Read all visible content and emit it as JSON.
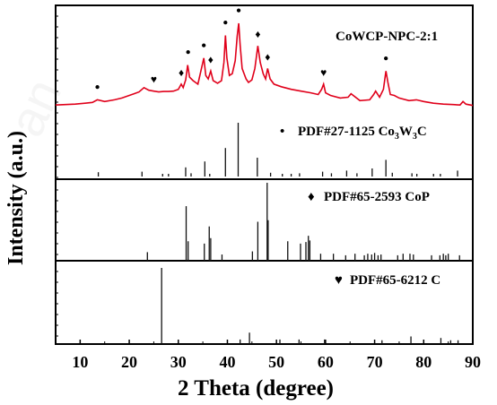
{
  "chart_data": {
    "type": "line",
    "xlabel": "2 Theta (degree)",
    "ylabel": "Intensity (a.u.)",
    "xlim": [
      5,
      90
    ],
    "xticks": [
      10,
      20,
      30,
      40,
      50,
      60,
      70,
      80,
      90
    ],
    "line_color": "#e0001a",
    "stick_color": "#111111",
    "panels": [
      {
        "id": "sample",
        "label": "CoWCP-NPC-2:1",
        "type": "line",
        "series": [
          {
            "x": [
              5,
              7,
              9,
              11,
              12.5,
              13.5,
              15,
              17,
              18.5,
              20,
              21,
              22,
              23,
              24,
              25,
              26,
              27,
              28,
              29,
              30,
              30.6,
              31,
              31.5,
              31.9,
              32.3,
              33,
              34,
              34.6,
              35.2,
              35.6,
              36.1,
              36.6,
              37.1,
              38,
              38.8,
              39.3,
              39.6,
              39.9,
              40.4,
              41,
              41.6,
              42,
              42.3,
              42.6,
              43,
              43.8,
              44.3,
              45,
              45.6,
              46.2,
              46.7,
              47.3,
              47.8,
              48.2,
              48.7,
              49.5,
              51,
              53,
              55,
              57,
              58.5,
              59.2,
              59.6,
              60,
              61,
              63,
              64.6,
              65.2,
              67,
              69,
              69.8,
              70.2,
              71,
              71.8,
              72.3,
              72.7,
              73.2,
              74,
              75,
              77,
              78.5,
              80,
              82,
              84,
              86,
              87.4,
              88,
              88.6,
              90
            ],
            "y": [
              6,
              6.5,
              7,
              8,
              9,
              12,
              10,
              12,
              14,
              17,
              19,
              21,
              26,
              23,
              22,
              21,
              21.5,
              21.5,
              22,
              24,
              30,
              26,
              35,
              52,
              38,
              34,
              30,
              45,
              60,
              40,
              36,
              45,
              34,
              31,
              34,
              55,
              86,
              60,
              40,
              42,
              57,
              85,
              100,
              75,
              48,
              36,
              32,
              35,
              48,
              74,
              55,
              42,
              36,
              48,
              36,
              30,
              27,
              24,
              22,
              20,
              18,
              24,
              30,
              20,
              17,
              14,
              15,
              19,
              11,
              12,
              18,
              22,
              15,
              24,
              45,
              32,
              18,
              17,
              14,
              11,
              12,
              10,
              8,
              7,
              6.5,
              6,
              10,
              7,
              5.5
            ]
          }
        ],
        "markers": [
          {
            "symbol": "•",
            "x": 13.5
          },
          {
            "symbol": "♥",
            "x": 25
          },
          {
            "symbol": "♦",
            "x": 30.6
          },
          {
            "symbol": "•",
            "x": 32
          },
          {
            "symbol": "•",
            "x": 35.2
          },
          {
            "symbol": "♦",
            "x": 36.6
          },
          {
            "symbol": "•",
            "x": 39.6
          },
          {
            "symbol": "•",
            "x": 42.3
          },
          {
            "symbol": "♦",
            "x": 46.2
          },
          {
            "symbol": "♦",
            "x": 48.2
          },
          {
            "symbol": "♥",
            "x": 59.6
          },
          {
            "symbol": "•",
            "x": 72.3
          }
        ]
      },
      {
        "id": "pdf-27-1125",
        "label_prefix": "•",
        "label_main": "PDF#27-1125  Co",
        "label_sub1": "3",
        "label_mid": "W",
        "label_sub2": "3",
        "label_end": "C",
        "type": "stick",
        "sticks": [
          {
            "x": 13.7,
            "y": 8
          },
          {
            "x": 22.6,
            "y": 9
          },
          {
            "x": 26.8,
            "y": 5
          },
          {
            "x": 28.0,
            "y": 5
          },
          {
            "x": 31.5,
            "y": 17
          },
          {
            "x": 32.6,
            "y": 6
          },
          {
            "x": 35.4,
            "y": 28
          },
          {
            "x": 36.4,
            "y": 5
          },
          {
            "x": 39.6,
            "y": 53
          },
          {
            "x": 42.2,
            "y": 100
          },
          {
            "x": 46.1,
            "y": 35
          },
          {
            "x": 48.8,
            "y": 7
          },
          {
            "x": 51.2,
            "y": 5
          },
          {
            "x": 53.0,
            "y": 5
          },
          {
            "x": 54.7,
            "y": 6
          },
          {
            "x": 59.4,
            "y": 9
          },
          {
            "x": 61.2,
            "y": 6
          },
          {
            "x": 64.3,
            "y": 11
          },
          {
            "x": 66.4,
            "y": 6
          },
          {
            "x": 69.5,
            "y": 15
          },
          {
            "x": 72.3,
            "y": 31
          },
          {
            "x": 73.6,
            "y": 7
          },
          {
            "x": 77.6,
            "y": 6
          },
          {
            "x": 78.6,
            "y": 5
          },
          {
            "x": 82.0,
            "y": 5
          },
          {
            "x": 83.4,
            "y": 5
          },
          {
            "x": 86.9,
            "y": 11
          }
        ]
      },
      {
        "id": "pdf-65-2593",
        "label_prefix": "♦",
        "label_main": "PDF#65-2593  CoP",
        "type": "stick",
        "sticks": [
          {
            "x": 23.7,
            "y": 11
          },
          {
            "x": 31.6,
            "y": 70
          },
          {
            "x": 32.0,
            "y": 25
          },
          {
            "x": 35.3,
            "y": 22
          },
          {
            "x": 36.3,
            "y": 44
          },
          {
            "x": 36.6,
            "y": 29
          },
          {
            "x": 38.9,
            "y": 8
          },
          {
            "x": 45.1,
            "y": 12
          },
          {
            "x": 46.2,
            "y": 50
          },
          {
            "x": 48.1,
            "y": 100
          },
          {
            "x": 48.3,
            "y": 52
          },
          {
            "x": 52.3,
            "y": 25
          },
          {
            "x": 54.9,
            "y": 22
          },
          {
            "x": 56.0,
            "y": 24
          },
          {
            "x": 56.5,
            "y": 32
          },
          {
            "x": 56.8,
            "y": 26
          },
          {
            "x": 59.0,
            "y": 9
          },
          {
            "x": 61.6,
            "y": 9
          },
          {
            "x": 64.1,
            "y": 7
          },
          {
            "x": 66.0,
            "y": 9
          },
          {
            "x": 67.9,
            "y": 7
          },
          {
            "x": 68.6,
            "y": 9
          },
          {
            "x": 69.4,
            "y": 8
          },
          {
            "x": 70.0,
            "y": 10
          },
          {
            "x": 70.7,
            "y": 7
          },
          {
            "x": 71.3,
            "y": 8
          },
          {
            "x": 74.7,
            "y": 7
          },
          {
            "x": 75.8,
            "y": 9
          },
          {
            "x": 77.2,
            "y": 9
          },
          {
            "x": 77.9,
            "y": 8
          },
          {
            "x": 81.6,
            "y": 7
          },
          {
            "x": 83.3,
            "y": 7
          },
          {
            "x": 84.0,
            "y": 9
          },
          {
            "x": 84.5,
            "y": 7
          },
          {
            "x": 85.0,
            "y": 9
          },
          {
            "x": 87.3,
            "y": 7
          }
        ]
      },
      {
        "id": "pdf-65-6212",
        "label_prefix": "♥",
        "label_main": "PDF#65-6212  C",
        "type": "stick",
        "sticks": [
          {
            "x": 26.6,
            "y": 100
          },
          {
            "x": 42.6,
            "y": 6
          },
          {
            "x": 44.5,
            "y": 15
          },
          {
            "x": 50.7,
            "y": 6
          },
          {
            "x": 54.6,
            "y": 6
          },
          {
            "x": 59.8,
            "y": 6
          },
          {
            "x": 71.5,
            "y": 5
          },
          {
            "x": 77.4,
            "y": 10
          },
          {
            "x": 83.5,
            "y": 8
          },
          {
            "x": 85.5,
            "y": 5
          },
          {
            "x": 87.0,
            "y": 5
          }
        ]
      }
    ]
  }
}
